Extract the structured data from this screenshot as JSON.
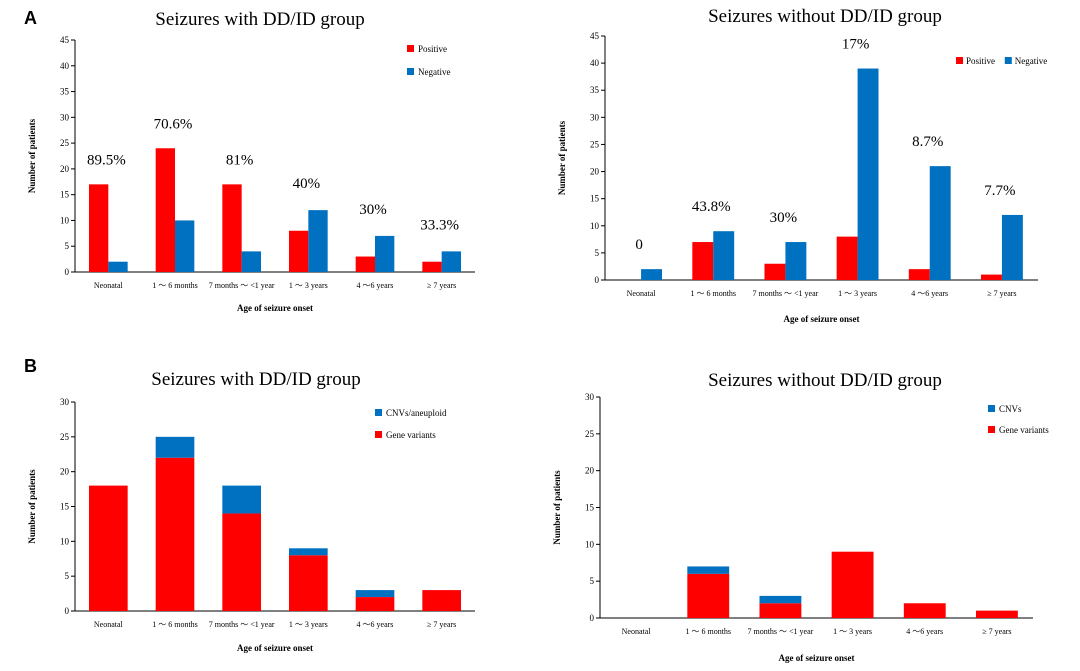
{
  "panel_labels": [
    "A",
    "B"
  ],
  "colors": {
    "red": "#ff0000",
    "blue": "#0070c0"
  },
  "chart_data": [
    {
      "type": "bar",
      "title": "Seizures with DD/ID group",
      "xlabel": "Age of seizure onset",
      "ylabel": "Number of patients",
      "ylim": [
        0,
        45
      ],
      "yticks": [
        0,
        5,
        10,
        15,
        20,
        25,
        30,
        35,
        40,
        45
      ],
      "stacked": false,
      "categories": [
        "Neonatal",
        "1 ～ 6 months",
        "7 months ～ <1 year",
        "1 ～ 3 years",
        "4 ～6 years",
        "≥ 7 years"
      ],
      "series": [
        {
          "name": "Positive",
          "color": "#ff0000",
          "values": [
            17,
            24,
            17,
            8,
            3,
            2
          ]
        },
        {
          "name": "Negative",
          "color": "#0070c0",
          "values": [
            2,
            10,
            4,
            12,
            7,
            4
          ]
        }
      ],
      "annotations": [
        "89.5%",
        "70.6%",
        "81%",
        "40%",
        "30%",
        "33.3%"
      ],
      "legend_position": "top-right"
    },
    {
      "type": "bar",
      "title": "Seizures without DD/ID group",
      "xlabel": "Age of seizure onset",
      "ylabel": "Number of patients",
      "ylim": [
        0,
        45
      ],
      "yticks": [
        0,
        5,
        10,
        15,
        20,
        25,
        30,
        35,
        40,
        45
      ],
      "stacked": false,
      "categories": [
        "Neonatal",
        "1 ～ 6 months",
        "7 months ～ <1 year",
        "1 ～ 3 years",
        "4 ～6 years",
        "≥ 7 years"
      ],
      "series": [
        {
          "name": "Positive",
          "color": "#ff0000",
          "values": [
            0,
            7,
            3,
            8,
            2,
            1
          ]
        },
        {
          "name": "Negative",
          "color": "#0070c0",
          "values": [
            2,
            9,
            7,
            39,
            21,
            12
          ]
        }
      ],
      "annotations": [
        "0",
        "43.8%",
        "30%",
        "17%",
        "8.7%",
        "7.7%"
      ],
      "legend_position": "top-right, inline"
    },
    {
      "type": "bar",
      "title": "Seizures with DD/ID group",
      "xlabel": "Age of seizure onset",
      "ylabel": "Number of patients",
      "ylim": [
        0,
        30
      ],
      "yticks": [
        0,
        5,
        10,
        15,
        20,
        25,
        30
      ],
      "stacked": true,
      "categories": [
        "Neonatal",
        "1 ～ 6 months",
        "7 months ～ <1 year",
        "1 ～ 3 years",
        "4 ～6 years",
        "≥ 7 years"
      ],
      "series": [
        {
          "name": "Gene variants",
          "color": "#ff0000",
          "values": [
            18,
            22,
            14,
            8,
            2,
            3
          ]
        },
        {
          "name": "CNVs/aneuploid",
          "color": "#0070c0",
          "values": [
            0,
            3,
            4,
            1,
            1,
            0
          ]
        }
      ],
      "legend_order": [
        "CNVs/aneuploid",
        "Gene variants"
      ],
      "legend_position": "top-right"
    },
    {
      "type": "bar",
      "title": "Seizures without DD/ID group",
      "xlabel": "Age of seizure onset",
      "ylabel": "Number of patients",
      "ylim": [
        0,
        30
      ],
      "yticks": [
        0,
        5,
        10,
        15,
        20,
        25,
        30
      ],
      "stacked": true,
      "categories": [
        "Neonatal",
        "1 ～ 6 months",
        "7 months ～ <1 year",
        "1 ～ 3 years",
        "4 ～6 years",
        "≥ 7 years"
      ],
      "series": [
        {
          "name": "Gene variants",
          "color": "#ff0000",
          "values": [
            0,
            6,
            2,
            9,
            2,
            1
          ]
        },
        {
          "name": "CNVs",
          "color": "#0070c0",
          "values": [
            0,
            1,
            1,
            0,
            0,
            0
          ]
        }
      ],
      "legend_order": [
        "CNVs",
        "Gene variants"
      ],
      "legend_position": "top-right"
    }
  ]
}
